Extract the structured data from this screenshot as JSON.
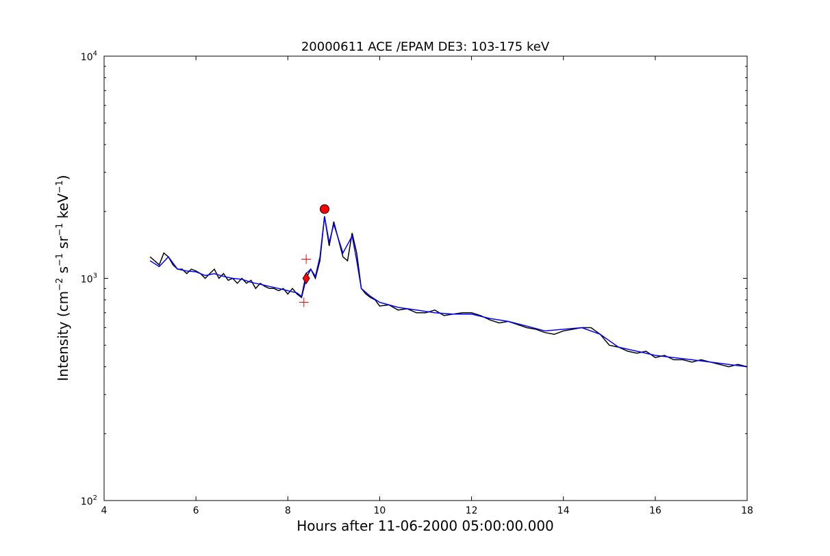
{
  "chart_data": {
    "type": "line",
    "title": "20000611 ACE /EPAM DE3: 103-175 keV",
    "xlabel": "Hours after 11-06-2000 05:00:00.000",
    "ylabel": {
      "prefix": "Intensity (cm",
      "sup1": "−2",
      "mid1": " s",
      "sup2": "−1",
      "mid2": " sr",
      "sup3": "−1",
      "mid3": " keV",
      "sup4": "−1",
      "suffix": ")"
    },
    "xlim": [
      4,
      18
    ],
    "ylim": [
      100,
      10000
    ],
    "yscale": "log",
    "xticks": [
      "4",
      "6",
      "8",
      "10",
      "12",
      "14",
      "16",
      "18"
    ],
    "yticks": [
      {
        "base": "10",
        "exp": "2"
      },
      {
        "base": "10",
        "exp": "3"
      },
      {
        "base": "10",
        "exp": "4"
      }
    ],
    "grid": false,
    "series": [
      {
        "color": "#000000",
        "role": "raw",
        "x": [
          5.0,
          5.1,
          5.2,
          5.3,
          5.4,
          5.5,
          5.6,
          5.7,
          5.8,
          5.9,
          6.0,
          6.1,
          6.2,
          6.3,
          6.4,
          6.5,
          6.6,
          6.7,
          6.8,
          6.9,
          7.0,
          7.1,
          7.2,
          7.3,
          7.4,
          7.5,
          7.6,
          7.7,
          7.8,
          7.9,
          8.0,
          8.1,
          8.2,
          8.3,
          8.4,
          8.5,
          8.6,
          8.7,
          8.8,
          8.9,
          9.0,
          9.1,
          9.2,
          9.3,
          9.4,
          9.5,
          9.6,
          9.7,
          9.8,
          9.9,
          10.0,
          10.2,
          10.4,
          10.6,
          10.8,
          11.0,
          11.2,
          11.4,
          11.6,
          11.8,
          12.0,
          12.2,
          12.4,
          12.6,
          12.8,
          13.0,
          13.2,
          13.4,
          13.6,
          13.8,
          14.0,
          14.2,
          14.4,
          14.6,
          14.8,
          15.0,
          15.2,
          15.4,
          15.6,
          15.8,
          16.0,
          16.2,
          16.4,
          16.6,
          16.8,
          17.0,
          17.2,
          17.4,
          17.6,
          17.8,
          18.0
        ],
        "y": [
          1250,
          1200,
          1150,
          1300,
          1250,
          1150,
          1100,
          1100,
          1050,
          1100,
          1080,
          1050,
          1000,
          1050,
          1100,
          1000,
          1050,
          980,
          1000,
          950,
          1000,
          950,
          980,
          900,
          950,
          920,
          900,
          900,
          880,
          900,
          850,
          900,
          850,
          820,
          1000,
          1100,
          1000,
          1200,
          1900,
          1400,
          1800,
          1500,
          1250,
          1200,
          1600,
          1300,
          900,
          850,
          820,
          800,
          750,
          760,
          720,
          730,
          700,
          700,
          720,
          680,
          690,
          700,
          700,
          680,
          650,
          630,
          640,
          620,
          600,
          590,
          570,
          560,
          580,
          590,
          600,
          600,
          560,
          500,
          490,
          470,
          460,
          470,
          440,
          450,
          430,
          430,
          420,
          430,
          420,
          410,
          400,
          410,
          400
        ]
      },
      {
        "color": "#0000ff",
        "role": "smoothed",
        "x": [
          5.0,
          5.2,
          5.4,
          5.6,
          5.8,
          6.0,
          6.2,
          6.4,
          6.6,
          6.8,
          7.0,
          7.2,
          7.4,
          7.6,
          7.8,
          8.0,
          8.2,
          8.3,
          8.4,
          8.5,
          8.6,
          8.7,
          8.8,
          8.9,
          9.0,
          9.2,
          9.4,
          9.5,
          9.6,
          9.8,
          10.0,
          10.4,
          10.8,
          11.2,
          11.6,
          12.0,
          12.4,
          12.8,
          13.2,
          13.6,
          14.0,
          14.4,
          14.8,
          15.2,
          15.6,
          16.0,
          16.4,
          16.8,
          17.2,
          17.6,
          18.0
        ],
        "y": [
          1200,
          1130,
          1250,
          1100,
          1080,
          1070,
          1030,
          1050,
          1020,
          1000,
          990,
          960,
          940,
          920,
          900,
          880,
          860,
          830,
          1050,
          1100,
          1020,
          1250,
          1900,
          1450,
          1750,
          1300,
          1550,
          1200,
          900,
          830,
          780,
          740,
          720,
          700,
          690,
          690,
          660,
          640,
          610,
          580,
          590,
          600,
          560,
          490,
          470,
          450,
          440,
          430,
          420,
          410,
          400
        ]
      }
    ],
    "markers": [
      {
        "shape": "circle",
        "color": "#ff0000",
        "x": 8.8,
        "y": 2050
      },
      {
        "shape": "diamond",
        "color": "#ff0000",
        "x": 8.4,
        "y": 1000
      },
      {
        "shape": "plus",
        "color": "#ff0000",
        "x": 8.4,
        "y": 1220
      },
      {
        "shape": "plus",
        "color": "#ff0000",
        "x": 8.35,
        "y": 780
      }
    ]
  }
}
